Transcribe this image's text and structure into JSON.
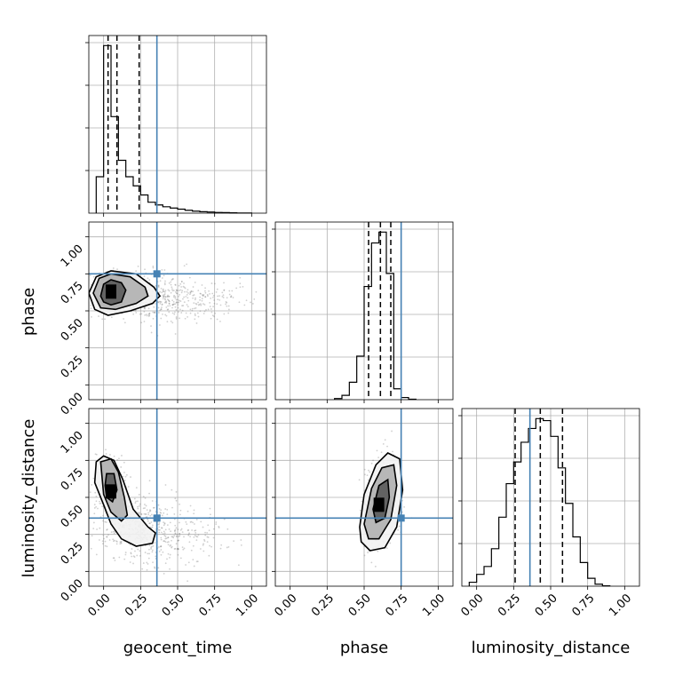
{
  "chart_data": {
    "type": "corner",
    "parameters": [
      "geocent_time",
      "phase",
      "luminosity_distance"
    ],
    "axis_range": [
      -0.1,
      1.1
    ],
    "tick_labels": [
      "0.00",
      "0.25",
      "0.50",
      "0.75",
      "1.00"
    ],
    "tick_values": [
      0,
      0.25,
      0.5,
      0.75,
      1.0
    ],
    "grid": true,
    "truths": {
      "geocent_time": 0.36,
      "phase": 0.75,
      "luminosity_distance": 0.36
    },
    "truth_color": "#4682b4",
    "marginals": [
      {
        "parameter": "geocent_time",
        "bin_edges": [
          -0.05,
          0.0,
          0.05,
          0.1,
          0.15,
          0.2,
          0.25,
          0.3,
          0.35,
          0.4,
          0.45,
          0.5,
          0.55,
          0.6,
          0.65,
          0.7,
          0.75,
          0.8,
          0.85,
          0.9,
          0.95,
          1.0
        ],
        "counts": [
          0.2,
          0.92,
          0.53,
          0.29,
          0.2,
          0.15,
          0.1,
          0.06,
          0.045,
          0.035,
          0.028,
          0.022,
          0.016,
          0.011,
          0.008,
          0.006,
          0.004,
          0.003,
          0.002,
          0.001,
          0.001
        ],
        "quantiles": [
          0.03,
          0.09,
          0.24
        ]
      },
      {
        "parameter": "phase",
        "bin_edges": [
          0.3,
          0.35,
          0.4,
          0.45,
          0.5,
          0.55,
          0.6,
          0.65,
          0.7,
          0.75,
          0.8,
          0.85
        ],
        "counts": [
          0.005,
          0.02,
          0.08,
          0.2,
          0.52,
          0.72,
          0.77,
          0.58,
          0.05,
          0.01,
          0.002
        ],
        "quantiles": [
          0.53,
          0.61,
          0.68
        ]
      },
      {
        "parameter": "luminosity_distance",
        "bin_edges": [
          -0.05,
          0.0,
          0.05,
          0.1,
          0.15,
          0.2,
          0.25,
          0.3,
          0.35,
          0.4,
          0.45,
          0.5,
          0.55,
          0.6,
          0.65,
          0.7,
          0.75,
          0.8,
          0.85,
          0.9
        ],
        "counts": [
          0.02,
          0.06,
          0.1,
          0.19,
          0.35,
          0.52,
          0.63,
          0.73,
          0.8,
          0.85,
          0.84,
          0.76,
          0.6,
          0.42,
          0.25,
          0.12,
          0.04,
          0.01,
          0.002
        ],
        "quantiles": [
          0.26,
          0.43,
          0.58
        ]
      }
    ],
    "joints": [
      {
        "x_param": "geocent_time",
        "y_param": "phase",
        "peak": [
          0.05,
          0.63
        ],
        "contours": [
          [
            [
              -0.02,
              0.6
            ],
            [
              0.0,
              0.68
            ],
            [
              0.05,
              0.71
            ],
            [
              0.12,
              0.69
            ],
            [
              0.15,
              0.64
            ],
            [
              0.12,
              0.56
            ],
            [
              0.05,
              0.54
            ],
            [
              0.0,
              0.56
            ]
          ],
          [
            [
              -0.07,
              0.62
            ],
            [
              -0.03,
              0.72
            ],
            [
              0.05,
              0.75
            ],
            [
              0.18,
              0.73
            ],
            [
              0.28,
              0.66
            ],
            [
              0.3,
              0.6
            ],
            [
              0.22,
              0.55
            ],
            [
              0.08,
              0.51
            ],
            [
              -0.02,
              0.52
            ]
          ],
          [
            [
              -0.1,
              0.62
            ],
            [
              -0.05,
              0.73
            ],
            [
              0.05,
              0.77
            ],
            [
              0.22,
              0.75
            ],
            [
              0.34,
              0.66
            ],
            [
              0.38,
              0.6
            ],
            [
              0.33,
              0.55
            ],
            [
              0.18,
              0.5
            ],
            [
              0.03,
              0.47
            ],
            [
              -0.06,
              0.51
            ]
          ]
        ],
        "scatter_centers": [
          [
            0.05,
            0.63,
            0.07,
            0.06
          ],
          [
            0.25,
            0.6,
            0.16,
            0.08
          ],
          [
            0.55,
            0.58,
            0.2,
            0.08
          ]
        ]
      },
      {
        "x_param": "geocent_time",
        "y_param": "luminosity_distance",
        "peak": [
          0.05,
          0.54
        ],
        "contours": [
          [
            [
              0.02,
              0.66
            ],
            [
              0.07,
              0.66
            ],
            [
              0.09,
              0.55
            ],
            [
              0.06,
              0.47
            ],
            [
              0.02,
              0.5
            ],
            [
              0.01,
              0.58
            ]
          ],
          [
            [
              -0.02,
              0.74
            ],
            [
              0.05,
              0.76
            ],
            [
              0.1,
              0.67
            ],
            [
              0.14,
              0.5
            ],
            [
              0.16,
              0.38
            ],
            [
              0.12,
              0.34
            ],
            [
              0.05,
              0.4
            ],
            [
              0.0,
              0.52
            ]
          ],
          [
            [
              -0.05,
              0.74
            ],
            [
              0.0,
              0.78
            ],
            [
              0.07,
              0.75
            ],
            [
              0.13,
              0.62
            ],
            [
              0.2,
              0.42
            ],
            [
              0.3,
              0.3
            ],
            [
              0.35,
              0.26
            ],
            [
              0.33,
              0.19
            ],
            [
              0.22,
              0.17
            ],
            [
              0.12,
              0.22
            ],
            [
              0.05,
              0.32
            ],
            [
              0.0,
              0.45
            ],
            [
              -0.06,
              0.6
            ]
          ]
        ],
        "scatter_centers": [
          [
            0.05,
            0.55,
            0.06,
            0.12
          ],
          [
            0.2,
            0.3,
            0.12,
            0.1
          ],
          [
            0.45,
            0.25,
            0.18,
            0.1
          ]
        ]
      },
      {
        "x_param": "phase",
        "y_param": "luminosity_distance",
        "peak": [
          0.6,
          0.45
        ],
        "contours": [
          [
            [
              0.56,
              0.42
            ],
            [
              0.6,
              0.58
            ],
            [
              0.66,
              0.62
            ],
            [
              0.67,
              0.5
            ],
            [
              0.64,
              0.36
            ],
            [
              0.58,
              0.33
            ]
          ],
          [
            [
              0.5,
              0.32
            ],
            [
              0.55,
              0.56
            ],
            [
              0.62,
              0.7
            ],
            [
              0.7,
              0.72
            ],
            [
              0.72,
              0.58
            ],
            [
              0.68,
              0.35
            ],
            [
              0.6,
              0.22
            ],
            [
              0.53,
              0.22
            ]
          ],
          [
            [
              0.47,
              0.3
            ],
            [
              0.5,
              0.52
            ],
            [
              0.58,
              0.72
            ],
            [
              0.66,
              0.8
            ],
            [
              0.74,
              0.76
            ],
            [
              0.76,
              0.55
            ],
            [
              0.72,
              0.3
            ],
            [
              0.64,
              0.16
            ],
            [
              0.54,
              0.14
            ],
            [
              0.48,
              0.2
            ]
          ]
        ],
        "scatter_centers": [
          [
            0.61,
            0.45,
            0.06,
            0.15
          ]
        ]
      }
    ]
  }
}
